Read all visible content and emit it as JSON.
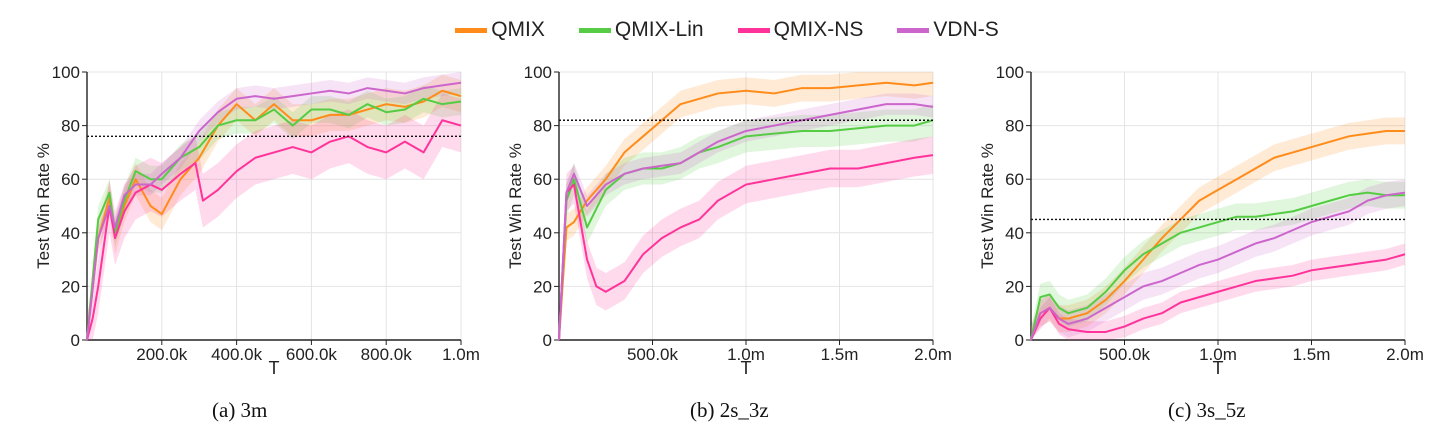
{
  "legend": [
    {
      "label": "QMIX",
      "color": "#ff8c1a"
    },
    {
      "label": "QMIX-Lin",
      "color": "#55cc44"
    },
    {
      "label": "QMIX-NS",
      "color": "#ff3399"
    },
    {
      "label": "VDN-S",
      "color": "#cc66cc"
    }
  ],
  "chart_data": [
    {
      "type": "line",
      "caption": "(a) 3m",
      "xlabel": "T",
      "ylabel": "Test Win Rate %",
      "xlim": [
        0,
        1000000
      ],
      "ylim": [
        0,
        100
      ],
      "xticks": [
        {
          "v": 200000,
          "label": "200.0k"
        },
        {
          "v": 400000,
          "label": "400.0k"
        },
        {
          "v": 600000,
          "label": "600.0k"
        },
        {
          "v": 800000,
          "label": "800.0k"
        },
        {
          "v": 1000000,
          "label": "1.0m"
        }
      ],
      "yticks": [
        {
          "v": 0,
          "label": "0"
        },
        {
          "v": 20,
          "label": "20"
        },
        {
          "v": 40,
          "label": "40"
        },
        {
          "v": 60,
          "label": "60"
        },
        {
          "v": 80,
          "label": "80"
        },
        {
          "v": 100,
          "label": "100"
        }
      ],
      "reference_line": 76,
      "grid": true,
      "series": [
        {
          "name": "QMIX",
          "x": [
            0,
            30000,
            60000,
            75000,
            100000,
            130000,
            170000,
            200000,
            250000,
            300000,
            350000,
            400000,
            450000,
            500000,
            550000,
            600000,
            650000,
            700000,
            750000,
            800000,
            850000,
            900000,
            950000,
            1000000
          ],
          "y": [
            0,
            38,
            53,
            38,
            50,
            60,
            50,
            47,
            60,
            68,
            80,
            88,
            82,
            88,
            82,
            82,
            84,
            84,
            86,
            88,
            87,
            89,
            93,
            91
          ],
          "band": 6
        },
        {
          "name": "QMIX-Lin",
          "x": [
            0,
            30000,
            60000,
            75000,
            100000,
            130000,
            170000,
            200000,
            250000,
            300000,
            350000,
            400000,
            450000,
            500000,
            550000,
            600000,
            650000,
            700000,
            750000,
            800000,
            850000,
            900000,
            950000,
            1000000
          ],
          "y": [
            0,
            45,
            55,
            40,
            52,
            63,
            60,
            60,
            68,
            72,
            80,
            82,
            82,
            86,
            80,
            86,
            86,
            84,
            88,
            85,
            86,
            90,
            88,
            89
          ],
          "band": 5
        },
        {
          "name": "QMIX-NS",
          "x": [
            0,
            15000,
            30000,
            60000,
            75000,
            100000,
            130000,
            170000,
            200000,
            250000,
            290000,
            310000,
            350000,
            400000,
            450000,
            500000,
            550000,
            600000,
            650000,
            700000,
            750000,
            800000,
            850000,
            900000,
            950000,
            1000000
          ],
          "y": [
            0,
            8,
            20,
            50,
            38,
            48,
            55,
            58,
            56,
            62,
            66,
            52,
            56,
            63,
            68,
            70,
            72,
            70,
            74,
            76,
            72,
            70,
            74,
            70,
            82,
            80
          ],
          "band": 10
        },
        {
          "name": "VDN-S",
          "x": [
            0,
            30000,
            60000,
            75000,
            100000,
            130000,
            170000,
            200000,
            250000,
            300000,
            350000,
            400000,
            450000,
            500000,
            550000,
            600000,
            650000,
            700000,
            750000,
            800000,
            850000,
            900000,
            950000,
            1000000
          ],
          "y": [
            0,
            38,
            50,
            42,
            54,
            58,
            58,
            62,
            68,
            78,
            85,
            90,
            91,
            90,
            91,
            92,
            93,
            92,
            94,
            93,
            92,
            94,
            95,
            96
          ],
          "band": 4
        }
      ]
    },
    {
      "type": "line",
      "caption": "(b) 2s_3z",
      "xlabel": "T",
      "ylabel": "Test Win Rate %",
      "xlim": [
        0,
        2000000
      ],
      "ylim": [
        0,
        100
      ],
      "xticks": [
        {
          "v": 500000,
          "label": "500.0k"
        },
        {
          "v": 1000000,
          "label": "1.0m"
        },
        {
          "v": 1500000,
          "label": "1.5m"
        },
        {
          "v": 2000000,
          "label": "2.0m"
        }
      ],
      "yticks": [
        {
          "v": 0,
          "label": "0"
        },
        {
          "v": 20,
          "label": "20"
        },
        {
          "v": 40,
          "label": "40"
        },
        {
          "v": 60,
          "label": "60"
        },
        {
          "v": 80,
          "label": "80"
        },
        {
          "v": 100,
          "label": "100"
        }
      ],
      "reference_line": 82,
      "grid": true,
      "series": [
        {
          "name": "QMIX",
          "x": [
            0,
            40000,
            80000,
            150000,
            250000,
            350000,
            450000,
            550000,
            650000,
            750000,
            850000,
            1000000,
            1150000,
            1300000,
            1450000,
            1600000,
            1750000,
            1900000,
            2000000
          ],
          "y": [
            0,
            42,
            44,
            52,
            60,
            70,
            76,
            82,
            88,
            90,
            92,
            93,
            92,
            94,
            94,
            95,
            96,
            95,
            96
          ],
          "band": 5
        },
        {
          "name": "QMIX-Lin",
          "x": [
            0,
            40000,
            80000,
            150000,
            250000,
            350000,
            450000,
            550000,
            650000,
            750000,
            850000,
            1000000,
            1150000,
            1300000,
            1450000,
            1600000,
            1750000,
            1900000,
            2000000
          ],
          "y": [
            0,
            52,
            60,
            42,
            56,
            62,
            64,
            64,
            66,
            70,
            72,
            76,
            77,
            78,
            78,
            79,
            80,
            80,
            82
          ],
          "band": 6
        },
        {
          "name": "QMIX-NS",
          "x": [
            0,
            40000,
            80000,
            150000,
            200000,
            250000,
            350000,
            450000,
            550000,
            650000,
            750000,
            850000,
            1000000,
            1150000,
            1300000,
            1450000,
            1600000,
            1750000,
            1900000,
            2000000
          ],
          "y": [
            0,
            55,
            58,
            30,
            20,
            18,
            22,
            32,
            38,
            42,
            45,
            52,
            58,
            60,
            62,
            64,
            64,
            66,
            68,
            69
          ],
          "band": 7
        },
        {
          "name": "VDN-S",
          "x": [
            0,
            40000,
            80000,
            150000,
            250000,
            350000,
            450000,
            550000,
            650000,
            750000,
            850000,
            1000000,
            1150000,
            1300000,
            1450000,
            1600000,
            1750000,
            1900000,
            2000000
          ],
          "y": [
            0,
            55,
            62,
            50,
            58,
            62,
            64,
            65,
            66,
            70,
            74,
            78,
            80,
            82,
            84,
            86,
            88,
            88,
            87
          ],
          "band": 4
        }
      ]
    },
    {
      "type": "line",
      "caption": "(c) 3s_5z",
      "xlabel": "T",
      "ylabel": "Test Win Rate %",
      "xlim": [
        0,
        2000000
      ],
      "ylim": [
        0,
        100
      ],
      "xticks": [
        {
          "v": 500000,
          "label": "500.0k"
        },
        {
          "v": 1000000,
          "label": "1.0m"
        },
        {
          "v": 1500000,
          "label": "1.5m"
        },
        {
          "v": 2000000,
          "label": "2.0m"
        }
      ],
      "yticks": [
        {
          "v": 0,
          "label": "0"
        },
        {
          "v": 20,
          "label": "20"
        },
        {
          "v": 40,
          "label": "40"
        },
        {
          "v": 60,
          "label": "60"
        },
        {
          "v": 80,
          "label": "80"
        },
        {
          "v": 100,
          "label": "100"
        }
      ],
      "reference_line": 45,
      "grid": true,
      "series": [
        {
          "name": "QMIX",
          "x": [
            0,
            50000,
            100000,
            150000,
            200000,
            300000,
            400000,
            500000,
            600000,
            700000,
            800000,
            900000,
            1000000,
            1100000,
            1200000,
            1300000,
            1400000,
            1500000,
            1600000,
            1700000,
            1800000,
            1900000,
            2000000
          ],
          "y": [
            0,
            10,
            12,
            8,
            8,
            10,
            15,
            22,
            30,
            38,
            45,
            52,
            56,
            60,
            64,
            68,
            70,
            72,
            74,
            76,
            77,
            78,
            78
          ],
          "band": 5
        },
        {
          "name": "QMIX-Lin",
          "x": [
            0,
            50000,
            100000,
            150000,
            200000,
            300000,
            400000,
            500000,
            600000,
            700000,
            800000,
            900000,
            1000000,
            1100000,
            1200000,
            1300000,
            1400000,
            1500000,
            1600000,
            1700000,
            1800000,
            1900000,
            2000000
          ],
          "y": [
            0,
            16,
            17,
            12,
            10,
            12,
            18,
            26,
            32,
            36,
            40,
            42,
            44,
            46,
            46,
            47,
            48,
            50,
            52,
            54,
            55,
            54,
            54
          ],
          "band": 5
        },
        {
          "name": "QMIX-NS",
          "x": [
            0,
            50000,
            100000,
            150000,
            200000,
            300000,
            400000,
            500000,
            600000,
            700000,
            800000,
            900000,
            1000000,
            1100000,
            1200000,
            1300000,
            1400000,
            1500000,
            1600000,
            1700000,
            1800000,
            1900000,
            2000000
          ],
          "y": [
            0,
            8,
            12,
            6,
            4,
            3,
            3,
            5,
            8,
            10,
            14,
            16,
            18,
            20,
            22,
            23,
            24,
            26,
            27,
            28,
            29,
            30,
            32
          ],
          "band": 4
        },
        {
          "name": "VDN-S",
          "x": [
            0,
            50000,
            100000,
            150000,
            200000,
            300000,
            400000,
            500000,
            600000,
            700000,
            800000,
            900000,
            1000000,
            1100000,
            1200000,
            1300000,
            1400000,
            1500000,
            1600000,
            1700000,
            1800000,
            1900000,
            2000000
          ],
          "y": [
            0,
            10,
            12,
            8,
            6,
            8,
            12,
            16,
            20,
            22,
            25,
            28,
            30,
            33,
            36,
            38,
            41,
            44,
            46,
            48,
            52,
            54,
            55
          ],
          "band": 5
        }
      ]
    }
  ]
}
